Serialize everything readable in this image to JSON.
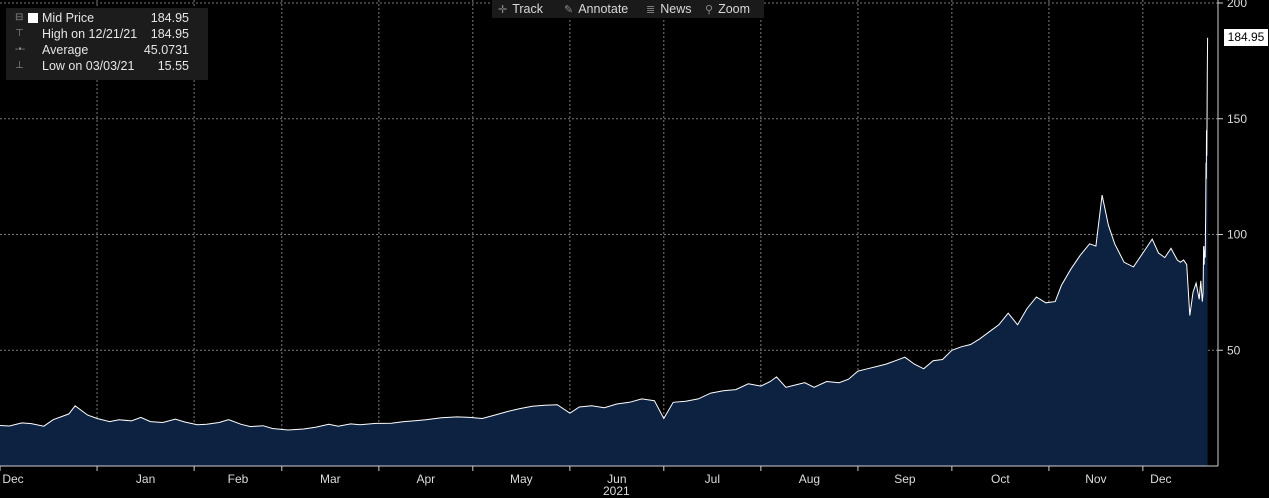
{
  "legend": {
    "series": "Mid Price",
    "series_value": "184.95",
    "high_label": "High on 12/21/21",
    "high_value": "184.95",
    "avg_label": "Average",
    "avg_value": "45.0731",
    "low_label": "Low on 03/03/21",
    "low_value": "15.55"
  },
  "toolbar": {
    "track": "Track",
    "track_icon": "crosshair-icon",
    "annotate": "Annotate",
    "annotate_icon": "pencil-icon",
    "news": "News",
    "news_icon": "news-icon",
    "zoom": "Zoom",
    "zoom_icon": "magnifier-icon"
  },
  "last_price": "184.95",
  "colors": {
    "background": "#000000",
    "area": "#0c2240",
    "line": "#ffffff",
    "grid": "#7a7a7a"
  },
  "chart_data": {
    "type": "area",
    "title": "",
    "xlabel": "2021",
    "ylabel": "",
    "ylim": [
      0,
      200
    ],
    "yticks": [
      50,
      100,
      150,
      200
    ],
    "xlim": [
      "2020-12-01",
      "2021-12-25"
    ],
    "grid": true,
    "x_ticks": [
      {
        "label": "Dec",
        "date": "2020-12-01"
      },
      {
        "label": "Jan",
        "date": "2021-01-01"
      },
      {
        "label": "Feb",
        "date": "2021-02-01"
      },
      {
        "label": "Mar",
        "date": "2021-03-01"
      },
      {
        "label": "Apr",
        "date": "2021-04-01"
      },
      {
        "label": "May",
        "date": "2021-05-01"
      },
      {
        "label": "Jun",
        "date": "2021-06-01"
      },
      {
        "label": "Jul",
        "date": "2021-07-01"
      },
      {
        "label": "Aug",
        "date": "2021-08-01"
      },
      {
        "label": "Sep",
        "date": "2021-09-01"
      },
      {
        "label": "Oct",
        "date": "2021-10-01"
      },
      {
        "label": "Nov",
        "date": "2021-11-01"
      },
      {
        "label": "Dec",
        "date": "2021-12-01"
      }
    ],
    "series": [
      {
        "name": "Mid Price",
        "points": [
          [
            "2020-12-01",
            17.5
          ],
          [
            "2020-12-04",
            17.3
          ],
          [
            "2020-12-08",
            18.6
          ],
          [
            "2020-12-11",
            18.3
          ],
          [
            "2020-12-15",
            17.2
          ],
          [
            "2020-12-18",
            20.0
          ],
          [
            "2020-12-23",
            22.5
          ],
          [
            "2020-12-25",
            26.0
          ],
          [
            "2020-12-29",
            22.0
          ],
          [
            "2021-01-01",
            20.5
          ],
          [
            "2021-01-05",
            19.2
          ],
          [
            "2021-01-08",
            20.0
          ],
          [
            "2021-01-12",
            19.5
          ],
          [
            "2021-01-15",
            21.0
          ],
          [
            "2021-01-18",
            19.2
          ],
          [
            "2021-01-22",
            18.8
          ],
          [
            "2021-01-26",
            20.2
          ],
          [
            "2021-01-29",
            19.0
          ],
          [
            "2021-02-02",
            17.8
          ],
          [
            "2021-02-05",
            18.0
          ],
          [
            "2021-02-09",
            18.8
          ],
          [
            "2021-02-12",
            20.0
          ],
          [
            "2021-02-16",
            18.0
          ],
          [
            "2021-02-19",
            17.0
          ],
          [
            "2021-02-23",
            17.4
          ],
          [
            "2021-02-26",
            16.2
          ],
          [
            "2021-03-03",
            15.55
          ],
          [
            "2021-03-08",
            16.0
          ],
          [
            "2021-03-12",
            16.8
          ],
          [
            "2021-03-16",
            18.0
          ],
          [
            "2021-03-19",
            17.2
          ],
          [
            "2021-03-23",
            18.2
          ],
          [
            "2021-03-26",
            17.8
          ],
          [
            "2021-03-31",
            18.4
          ],
          [
            "2021-04-05",
            18.5
          ],
          [
            "2021-04-09",
            19.2
          ],
          [
            "2021-04-13",
            19.6
          ],
          [
            "2021-04-16",
            20.0
          ],
          [
            "2021-04-21",
            20.8
          ],
          [
            "2021-04-26",
            21.2
          ],
          [
            "2021-04-30",
            21.0
          ],
          [
            "2021-05-04",
            20.5
          ],
          [
            "2021-05-08",
            22.0
          ],
          [
            "2021-05-12",
            23.5
          ],
          [
            "2021-05-16",
            24.8
          ],
          [
            "2021-05-20",
            25.8
          ],
          [
            "2021-05-24",
            26.2
          ],
          [
            "2021-05-28",
            26.5
          ],
          [
            "2021-06-01",
            22.8
          ],
          [
            "2021-06-04",
            25.5
          ],
          [
            "2021-06-08",
            26.0
          ],
          [
            "2021-06-12",
            25.2
          ],
          [
            "2021-06-16",
            26.8
          ],
          [
            "2021-06-20",
            27.5
          ],
          [
            "2021-06-24",
            29.0
          ],
          [
            "2021-06-28",
            28.2
          ],
          [
            "2021-07-01",
            20.5
          ],
          [
            "2021-07-04",
            27.5
          ],
          [
            "2021-07-08",
            28.0
          ],
          [
            "2021-07-12",
            29.0
          ],
          [
            "2021-07-16",
            31.5
          ],
          [
            "2021-07-20",
            32.5
          ],
          [
            "2021-07-24",
            33.0
          ],
          [
            "2021-07-28",
            35.5
          ],
          [
            "2021-08-01",
            34.5
          ],
          [
            "2021-08-04",
            36.5
          ],
          [
            "2021-08-06",
            38.5
          ],
          [
            "2021-08-09",
            34.0
          ],
          [
            "2021-08-12",
            35.0
          ],
          [
            "2021-08-15",
            36.0
          ],
          [
            "2021-08-18",
            34.0
          ],
          [
            "2021-08-22",
            36.5
          ],
          [
            "2021-08-26",
            36.0
          ],
          [
            "2021-08-29",
            37.5
          ],
          [
            "2021-09-01",
            41.0
          ],
          [
            "2021-09-04",
            42.0
          ],
          [
            "2021-09-07",
            43.0
          ],
          [
            "2021-09-10",
            44.0
          ],
          [
            "2021-09-13",
            45.5
          ],
          [
            "2021-09-16",
            47.0
          ],
          [
            "2021-09-19",
            44.0
          ],
          [
            "2021-09-22",
            42.0
          ],
          [
            "2021-09-25",
            45.5
          ],
          [
            "2021-09-28",
            46.0
          ],
          [
            "2021-10-01",
            50.0
          ],
          [
            "2021-10-04",
            51.5
          ],
          [
            "2021-10-07",
            52.5
          ],
          [
            "2021-10-10",
            55.0
          ],
          [
            "2021-10-13",
            58.0
          ],
          [
            "2021-10-16",
            61.0
          ],
          [
            "2021-10-19",
            66.0
          ],
          [
            "2021-10-22",
            61.0
          ],
          [
            "2021-10-25",
            68.0
          ],
          [
            "2021-10-28",
            73.0
          ],
          [
            "2021-10-31",
            70.5
          ],
          [
            "2021-11-03",
            71.0
          ],
          [
            "2021-11-05",
            78.0
          ],
          [
            "2021-11-08",
            85.0
          ],
          [
            "2021-11-11",
            91.0
          ],
          [
            "2021-11-14",
            96.0
          ],
          [
            "2021-11-16",
            95.0
          ],
          [
            "2021-11-18",
            117.0
          ],
          [
            "2021-11-20",
            104.0
          ],
          [
            "2021-11-22",
            96.0
          ],
          [
            "2021-11-25",
            88.0
          ],
          [
            "2021-11-28",
            86.0
          ],
          [
            "2021-12-01",
            92.0
          ],
          [
            "2021-12-04",
            98.0
          ],
          [
            "2021-12-06",
            92.0
          ],
          [
            "2021-12-08",
            90.0
          ],
          [
            "2021-12-10",
            94.0
          ],
          [
            "2021-12-12",
            89.0
          ],
          [
            "2021-12-13",
            88.0
          ],
          [
            "2021-12-14",
            89.0
          ],
          [
            "2021-12-15",
            87.0
          ],
          [
            "2021-12-16",
            65.0
          ],
          [
            "2021-12-17",
            75.0
          ],
          [
            "2021-12-18",
            79.0
          ],
          [
            "2021-12-19",
            72.0
          ],
          [
            "2021-12-19T12",
            80.0
          ],
          [
            "2021-12-20",
            71.0
          ],
          [
            "2021-12-20T06",
            75.0
          ],
          [
            "2021-12-20T10",
            95.0
          ],
          [
            "2021-12-20T14",
            87.0
          ],
          [
            "2021-12-20T16",
            93.0
          ],
          [
            "2021-12-20T18",
            90.0
          ],
          [
            "2021-12-20T20",
            95.0
          ],
          [
            "2021-12-20T22",
            90.0
          ],
          [
            "2021-12-21",
            102.0
          ],
          [
            "2021-12-21T02",
            110.0
          ],
          [
            "2021-12-21T04",
            131.0
          ],
          [
            "2021-12-21T06",
            124.0
          ],
          [
            "2021-12-21T08",
            145.0
          ],
          [
            "2021-12-21T10",
            134.0
          ],
          [
            "2021-12-21T12",
            147.0
          ],
          [
            "2021-12-21T14",
            170.0
          ],
          [
            "2021-12-21T16",
            184.95
          ]
        ]
      }
    ]
  }
}
